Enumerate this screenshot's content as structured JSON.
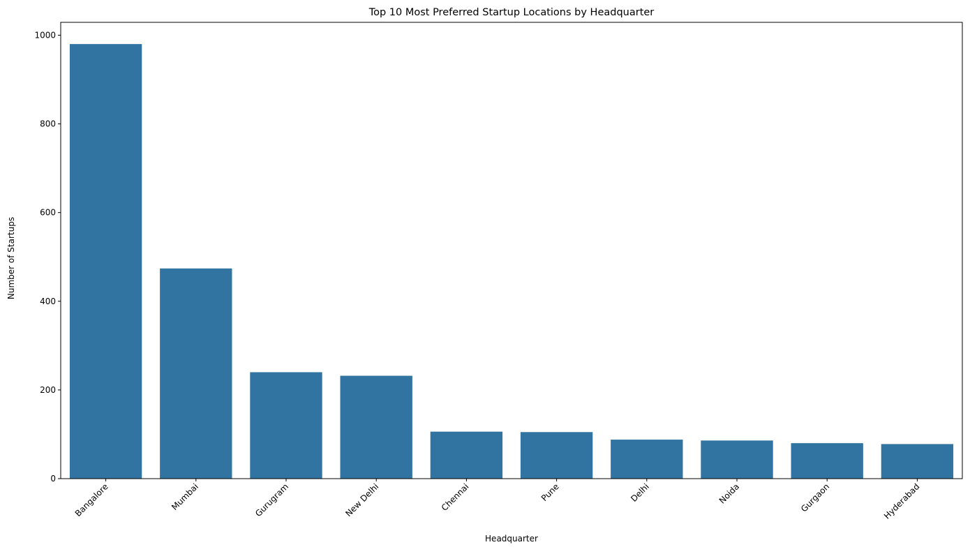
{
  "chart_data": {
    "type": "bar",
    "title": "Top 10 Most Preferred Startup Locations by Headquarter",
    "xlabel": "Headquarter",
    "ylabel": "Number of Startups",
    "categories": [
      "Bangalore",
      "Mumbai",
      "Gurugram",
      "New Delhi",
      "Chennai",
      "Pune",
      "Delhi",
      "Noida",
      "Gurgaon",
      "Hyderabad"
    ],
    "values": [
      980,
      474,
      240,
      232,
      106,
      105,
      88,
      86,
      80,
      78
    ],
    "ylim": [
      0,
      1029
    ],
    "yticks": [
      0,
      200,
      400,
      600,
      800,
      1000
    ],
    "ytick_labels": [
      "0",
      "200",
      "400",
      "600",
      "800",
      "1000"
    ],
    "grid": false,
    "legend": "none",
    "bar_color": "#3274a1",
    "tick_rotation_deg": 45
  }
}
